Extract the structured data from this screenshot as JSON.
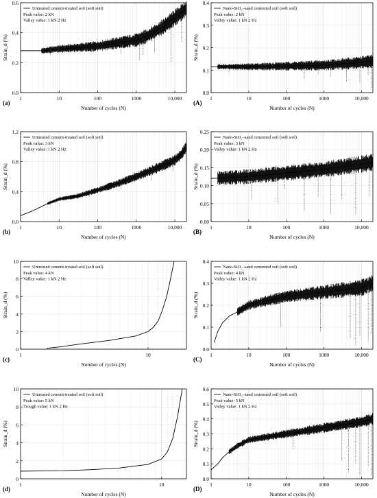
{
  "chart_data": [
    {
      "panel": "(a)",
      "type": "line",
      "xscale": "log",
      "xlim": [
        1,
        20000
      ],
      "ylim": [
        0,
        0.6
      ],
      "yticks": [
        0.0,
        0.2,
        0.4,
        0.6
      ],
      "yticklabels": [
        "0.0",
        "0.2",
        "0.4",
        "0.6"
      ],
      "xticklabels": [
        "1",
        "10",
        "100",
        "1000",
        "10,000"
      ],
      "xlabel": "Number of cycles (N)",
      "ylabel": "Strain_d (%)",
      "legend": {
        "series": "Untreated cement-treated soil (soft soil)",
        "lines": [
          "Peak value: 2 kN",
          "Valley value: 1 kN 2 Hz"
        ]
      },
      "curve": {
        "x": [
          1,
          4,
          8,
          30,
          100,
          300,
          1000,
          2000,
          5000,
          10000,
          20000
        ],
        "y": [
          0.28,
          0.28,
          0.29,
          0.3,
          0.31,
          0.33,
          0.35,
          0.38,
          0.44,
          0.5,
          0.56
        ]
      },
      "band": {
        "start": 3.5,
        "end": 20000,
        "amp_start": 0.02,
        "amp_end": 0.06
      },
      "spikes": {
        "x": [
          6,
          70,
          400,
          1200,
          1500,
          3000,
          8000,
          15000
        ],
        "y": [
          0.25,
          0.27,
          0.26,
          0.22,
          0.25,
          0.27,
          0.2,
          0.34
        ]
      }
    },
    {
      "panel": "(A)",
      "type": "line",
      "xscale": "log",
      "xlim": [
        1,
        20000
      ],
      "ylim": [
        0,
        0.4
      ],
      "yticks": [
        0.0,
        0.1,
        0.2,
        0.3,
        0.4
      ],
      "yticklabels": [
        "0.0",
        "0.1",
        "0.2",
        "0.3",
        "0.4"
      ],
      "xticklabels": [
        "1",
        "10",
        "100",
        "1000",
        "10,000"
      ],
      "xlabel": "Number of cycles (N)",
      "ylabel": "Strain_d (%)",
      "legend": {
        "series": "Nano-SiO₂–sand cemented soil (soft soil)",
        "lines": [
          "Peak value: 2 kN",
          "Valley value: 1 kN 2 Hz"
        ]
      },
      "curve": {
        "x": [
          1,
          10,
          100,
          1000,
          5000,
          20000
        ],
        "y": [
          0.115,
          0.115,
          0.118,
          0.122,
          0.13,
          0.14
        ]
      },
      "band": {
        "start": 1.5,
        "end": 20000,
        "amp_start": 0.012,
        "amp_end": 0.03
      },
      "spikes": {
        "x": [
          3,
          300,
          700,
          1500,
          4000,
          9000,
          15000,
          18000
        ],
        "y": [
          0.09,
          0.06,
          0.08,
          0.07,
          0.05,
          0.04,
          0.08,
          0.02
        ]
      }
    },
    {
      "panel": "(b)",
      "type": "line",
      "xscale": "log",
      "xlim": [
        1,
        20000
      ],
      "ylim": [
        0,
        1.2
      ],
      "yticks": [
        0.0,
        0.4,
        0.8,
        1.2
      ],
      "yticklabels": [
        "0.0",
        "0.4",
        "0.8",
        "1.2"
      ],
      "xticklabels": [
        "1",
        "10",
        "100",
        "1000",
        "10,000"
      ],
      "xlabel": "Number of cycles (N)",
      "ylabel": "Strain_d (%)",
      "legend": {
        "series": "Untreated cement-treated soil (soft soil)",
        "lines": [
          "Peak value: 3 kN",
          "Valley value: 1 kN 2 Hz"
        ]
      },
      "curve": {
        "x": [
          1,
          2,
          5,
          10,
          30,
          100,
          300,
          1000,
          3000,
          10000,
          15000,
          20000
        ],
        "y": [
          0.08,
          0.14,
          0.24,
          0.3,
          0.34,
          0.42,
          0.5,
          0.6,
          0.7,
          0.82,
          0.9,
          1.0
        ]
      },
      "band": {
        "start": 5,
        "end": 20000,
        "amp_start": 0.02,
        "amp_end": 0.08
      },
      "spikes": {
        "x": [
          8,
          60,
          400,
          2500,
          9000
        ],
        "y": [
          0.25,
          0.33,
          0.43,
          0.55,
          0.68
        ]
      }
    },
    {
      "panel": "(B)",
      "type": "line",
      "xscale": "log",
      "xlim": [
        1,
        20000
      ],
      "ylim": [
        0,
        0.25
      ],
      "yticks": [
        0.0,
        0.05,
        0.1,
        0.15,
        0.2,
        0.25
      ],
      "yticklabels": [
        "0.00",
        "0.05",
        "0.10",
        "0.15",
        "0.20",
        "0.25"
      ],
      "xticklabels": [
        "1",
        "10",
        "100",
        "1000",
        "10,000"
      ],
      "xlabel": "Number of cycles (N)",
      "ylabel": "Strain_d (%)",
      "legend": {
        "series": "Nano-SiO₂–sand cemented soil (soft soil)",
        "lines": [
          "Peak value: 3 kN",
          "Valley value: 1 kN 2 Hz"
        ]
      },
      "curve": {
        "x": [
          1,
          10,
          100,
          1000,
          10000,
          20000
        ],
        "y": [
          0.12,
          0.125,
          0.135,
          0.145,
          0.16,
          0.165
        ]
      },
      "band": {
        "start": 1.5,
        "end": 20000,
        "amp_start": 0.02,
        "amp_end": 0.025
      },
      "spikes": {
        "x": [
          12,
          60,
          90,
          300,
          700,
          1500,
          3000,
          7000,
          16000
        ],
        "y": [
          0.06,
          0.05,
          0.09,
          0.03,
          0.07,
          0.02,
          0.06,
          0.02,
          0.07
        ]
      }
    },
    {
      "panel": "(c)",
      "type": "line",
      "xscale": "log",
      "xlim": [
        1,
        20
      ],
      "ylim": [
        0,
        10
      ],
      "yticks": [
        0,
        2,
        4,
        6,
        8,
        10
      ],
      "yticklabels": [
        "0",
        "2",
        "4",
        "6",
        "8",
        "10"
      ],
      "xticklabels": [
        "1",
        "10"
      ],
      "xlabel": "Number of cycles (N)",
      "ylabel": "Strain_d (%)",
      "legend": {
        "series": "Untreated cement-treated soil (soft soil)",
        "lines": [
          "Peak value: 4 kN",
          "Valley value: 1 kN 2 Hz"
        ]
      },
      "curve": {
        "x": [
          1.6,
          2,
          3,
          5,
          8,
          10,
          11,
          12,
          13,
          14,
          15,
          16
        ],
        "y": [
          0.1,
          0.25,
          0.6,
          1.0,
          1.5,
          2.0,
          2.5,
          3.2,
          4.5,
          6.0,
          8.0,
          10.0
        ]
      },
      "band": null,
      "spikes": null
    },
    {
      "panel": "(C)",
      "type": "line",
      "xscale": "log",
      "xlim": [
        1,
        20000
      ],
      "ylim": [
        0,
        0.4
      ],
      "yticks": [
        0.0,
        0.1,
        0.2,
        0.3,
        0.4
      ],
      "yticklabels": [
        "0.0",
        "0.1",
        "0.2",
        "0.3",
        "0.4"
      ],
      "xticklabels": [
        "1",
        "10",
        "100",
        "1000",
        "10,000"
      ],
      "xlabel": "Number of cycles (N)",
      "ylabel": "Strain_d (%)",
      "legend": {
        "series": "Nano-SiO₂–sand cemented soil (soft soil)",
        "lines": [
          "Peak value: 4 kN",
          "Valley value: 1 kN 2 Hz"
        ]
      },
      "curve": {
        "x": [
          1.2,
          1.5,
          2,
          3,
          5,
          10,
          30,
          100,
          1000,
          10000,
          20000
        ],
        "y": [
          0.03,
          0.08,
          0.12,
          0.15,
          0.17,
          0.2,
          0.22,
          0.24,
          0.26,
          0.28,
          0.3
        ]
      },
      "band": {
        "start": 5,
        "end": 20000,
        "amp_start": 0.02,
        "amp_end": 0.04
      },
      "spikes": {
        "x": [
          70,
          800,
          5000,
          7000,
          9000,
          15000,
          18000
        ],
        "y": [
          0.1,
          0.08,
          0.05,
          0.02,
          0.06,
          0.03,
          0.07
        ]
      }
    },
    {
      "panel": "(d)",
      "type": "line",
      "xscale": "log",
      "xlim": [
        1,
        15
      ],
      "ylim": [
        0,
        10
      ],
      "yticks": [
        0,
        2,
        4,
        6,
        8,
        10
      ],
      "yticklabels": [
        "0",
        "2",
        "4",
        "6",
        "8",
        "10"
      ],
      "xticklabels": [
        "1",
        "10"
      ],
      "xlabel": "Number of cycles (N)",
      "ylabel": "Strain_d (%)",
      "legend": {
        "series": "Untreated cement-treated soil (soft soil)",
        "lines": [
          "Peak value: 5 kN",
          "Trough value: 1 kN 2 Hz"
        ]
      },
      "curve": {
        "x": [
          1,
          2,
          3,
          5,
          8,
          10,
          11,
          12,
          13,
          14
        ],
        "y": [
          0.85,
          0.9,
          1.0,
          1.2,
          1.6,
          2.2,
          3.0,
          4.5,
          7.0,
          10.0
        ]
      },
      "band": null,
      "spikes": null
    },
    {
      "panel": "(D)",
      "type": "line",
      "xscale": "log",
      "xlim": [
        1,
        20000
      ],
      "ylim": [
        0,
        0.6
      ],
      "yticks": [
        0.0,
        0.1,
        0.2,
        0.3,
        0.4,
        0.5,
        0.6
      ],
      "yticklabels": [
        "0.0",
        "0.1",
        "0.2",
        "0.3",
        "0.4",
        "0.5",
        "0.6"
      ],
      "xticklabels": [
        "1",
        "10",
        "100",
        "1000",
        "10,000"
      ],
      "xlabel": "Number of cycles (N)",
      "ylabel": "Strain_d (%)",
      "legend": {
        "series": "Nano-SiO₂–sand cemented soil (soft soil)",
        "lines": [
          "Peak value: 5 kN",
          "Valley value: 1 kN 2 Hz"
        ]
      },
      "curve": {
        "x": [
          1,
          1.5,
          2,
          3,
          5,
          10,
          100,
          1000,
          10000,
          20000
        ],
        "y": [
          0.06,
          0.1,
          0.14,
          0.18,
          0.22,
          0.26,
          0.3,
          0.34,
          0.38,
          0.4
        ]
      },
      "band": {
        "start": 3,
        "end": 20000,
        "amp_start": 0.02,
        "amp_end": 0.04
      },
      "spikes": {
        "x": [
          150,
          3000,
          4500,
          7000,
          9000,
          15000,
          18000
        ],
        "y": [
          0.2,
          0.12,
          0.04,
          0.1,
          0.03,
          0.08,
          0.02
        ]
      }
    }
  ]
}
